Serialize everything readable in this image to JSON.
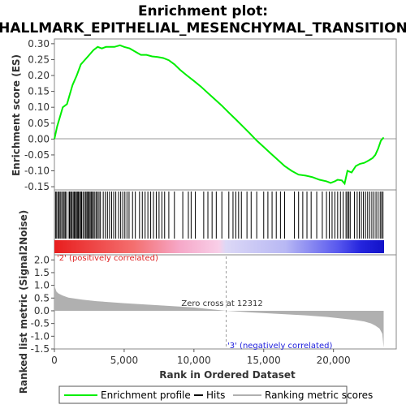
{
  "chart_data": {
    "type": "line",
    "title_line1": "Enrichment plot:",
    "title_line2": "HALLMARK_EPITHELIAL_MESENCHYMAL_TRANSITION",
    "es_panel": {
      "ylabel": "Enrichment score (ES)",
      "ylim": [
        -0.16,
        0.315
      ],
      "yticks": [
        "0.30",
        "0.25",
        "0.20",
        "0.15",
        "0.10",
        "0.05",
        "0.00",
        "-0.05",
        "-0.10",
        "-0.15"
      ],
      "ytick_values": [
        0.3,
        0.25,
        0.2,
        0.15,
        0.1,
        0.05,
        0.0,
        -0.05,
        -0.1,
        -0.15
      ],
      "series": [
        {
          "name": "Enrichment profile",
          "color": "#00ee00",
          "x": [
            0,
            200,
            400,
            600,
            900,
            1100,
            1300,
            1600,
            1900,
            2200,
            2500,
            2800,
            3100,
            3400,
            3700,
            4000,
            4300,
            4700,
            5000,
            5400,
            5800,
            6200,
            6600,
            7000,
            7400,
            7800,
            8200,
            8600,
            9000,
            9500,
            10000,
            10500,
            11000,
            11500,
            12000,
            12500,
            13000,
            13500,
            14000,
            14500,
            15000,
            15500,
            16000,
            16500,
            17000,
            17500,
            18000,
            18500,
            19000,
            19500,
            19800,
            20100,
            20300,
            20600,
            20800,
            21000,
            21300,
            21600,
            21900,
            22200,
            22500,
            22800,
            23000,
            23200,
            23400,
            23600
          ],
          "y": [
            0.0,
            0.04,
            0.07,
            0.1,
            0.11,
            0.14,
            0.17,
            0.2,
            0.235,
            0.25,
            0.265,
            0.28,
            0.29,
            0.285,
            0.29,
            0.29,
            0.29,
            0.295,
            0.29,
            0.285,
            0.275,
            0.265,
            0.265,
            0.26,
            0.258,
            0.255,
            0.248,
            0.235,
            0.218,
            0.2,
            0.183,
            0.165,
            0.145,
            0.125,
            0.105,
            0.083,
            0.062,
            0.04,
            0.018,
            -0.005,
            -0.025,
            -0.045,
            -0.065,
            -0.085,
            -0.1,
            -0.112,
            -0.115,
            -0.12,
            -0.128,
            -0.133,
            -0.138,
            -0.133,
            -0.128,
            -0.13,
            -0.14,
            -0.1,
            -0.105,
            -0.085,
            -0.078,
            -0.075,
            -0.068,
            -0.06,
            -0.05,
            -0.03,
            -0.005,
            0.005
          ]
        }
      ]
    },
    "hits_panel": {
      "hit_ranks": [
        80,
        160,
        260,
        340,
        420,
        520,
        620,
        700,
        780,
        880,
        1050,
        1100,
        1180,
        1260,
        1350,
        1430,
        1500,
        1580,
        1650,
        1720,
        1800,
        1880,
        1950,
        2050,
        2150,
        2250,
        2330,
        2400,
        2480,
        2560,
        2640,
        2720,
        2800,
        2900,
        3000,
        3100,
        3200,
        3300,
        3500,
        3650,
        3800,
        3950,
        4100,
        4250,
        4400,
        4600,
        4750,
        4900,
        5050,
        5200,
        5350,
        5600,
        5800,
        6100,
        6300,
        6500,
        6700,
        6900,
        7100,
        7300,
        7500,
        7700,
        7900,
        8200,
        8600,
        9200,
        9600,
        9800,
        10100,
        10700,
        11000,
        11300,
        11600,
        12000,
        12500,
        12800,
        13000,
        13200,
        13400,
        13800,
        14100,
        14500,
        15000,
        15300,
        15600,
        15900,
        16200,
        16500,
        17200,
        17500,
        17800,
        18100,
        18400,
        18800,
        19200,
        19500,
        19700,
        19900,
        20100,
        20300,
        20500,
        20700,
        20900,
        21000,
        21100,
        21200,
        21500,
        21700,
        21850,
        22000,
        22150,
        22300,
        22450,
        22600,
        22750,
        22900,
        23050,
        23200,
        23350,
        23450,
        23550
      ]
    },
    "metric_panel": {
      "ylabel": "Ranked list metric (Signal2Noise)",
      "ylim": [
        -1.5,
        2.2
      ],
      "yticks": [
        "2.0",
        "1.5",
        "1.0",
        "0.5",
        "0.0",
        "-0.5",
        "-1.0",
        "-1.5"
      ],
      "ytick_values": [
        2.0,
        1.5,
        1.0,
        0.5,
        0.0,
        -0.5,
        -1.0,
        -1.5
      ],
      "series": [
        {
          "name": "Ranking metric scores",
          "color": "#b0b0b0",
          "x": [
            0,
            50,
            150,
            300,
            600,
            1000,
            2000,
            3000,
            5000,
            8000,
            10000,
            12312,
            14000,
            16000,
            18000,
            19500,
            20500,
            21500,
            22200,
            22700,
            23000,
            23300,
            23500,
            23550,
            23600
          ],
          "y": [
            1.0,
            0.9,
            0.75,
            0.68,
            0.6,
            0.52,
            0.44,
            0.38,
            0.3,
            0.2,
            0.13,
            0.0,
            -0.06,
            -0.12,
            -0.18,
            -0.24,
            -0.3,
            -0.36,
            -0.42,
            -0.5,
            -0.58,
            -0.7,
            -0.9,
            -1.2,
            -1.45
          ]
        }
      ],
      "annotations": [
        "Zero cross at 12312",
        "'2' (positively correlated)",
        "'3' (negatively correlated)"
      ],
      "zero_cross": 12312
    },
    "x_axis": {
      "label": "Rank in Ordered Dataset",
      "xlim": [
        0,
        24500
      ],
      "ticks": [
        "0",
        "5,000",
        "10,000",
        "15,000",
        "20,000"
      ],
      "tick_values": [
        0,
        5000,
        10000,
        15000,
        20000
      ],
      "n_genes": 23600
    },
    "legend": {
      "position": "bottom",
      "items": [
        {
          "label": "Enrichment profile",
          "color": "#00ee00"
        },
        {
          "label": "Hits",
          "color": "#000000"
        },
        {
          "label": "Ranking metric scores",
          "color": "#b0b0b0"
        }
      ]
    },
    "colors": {
      "pos_label": "#dd2222",
      "neg_label": "#2222dd",
      "zero_line": "#999999"
    }
  }
}
